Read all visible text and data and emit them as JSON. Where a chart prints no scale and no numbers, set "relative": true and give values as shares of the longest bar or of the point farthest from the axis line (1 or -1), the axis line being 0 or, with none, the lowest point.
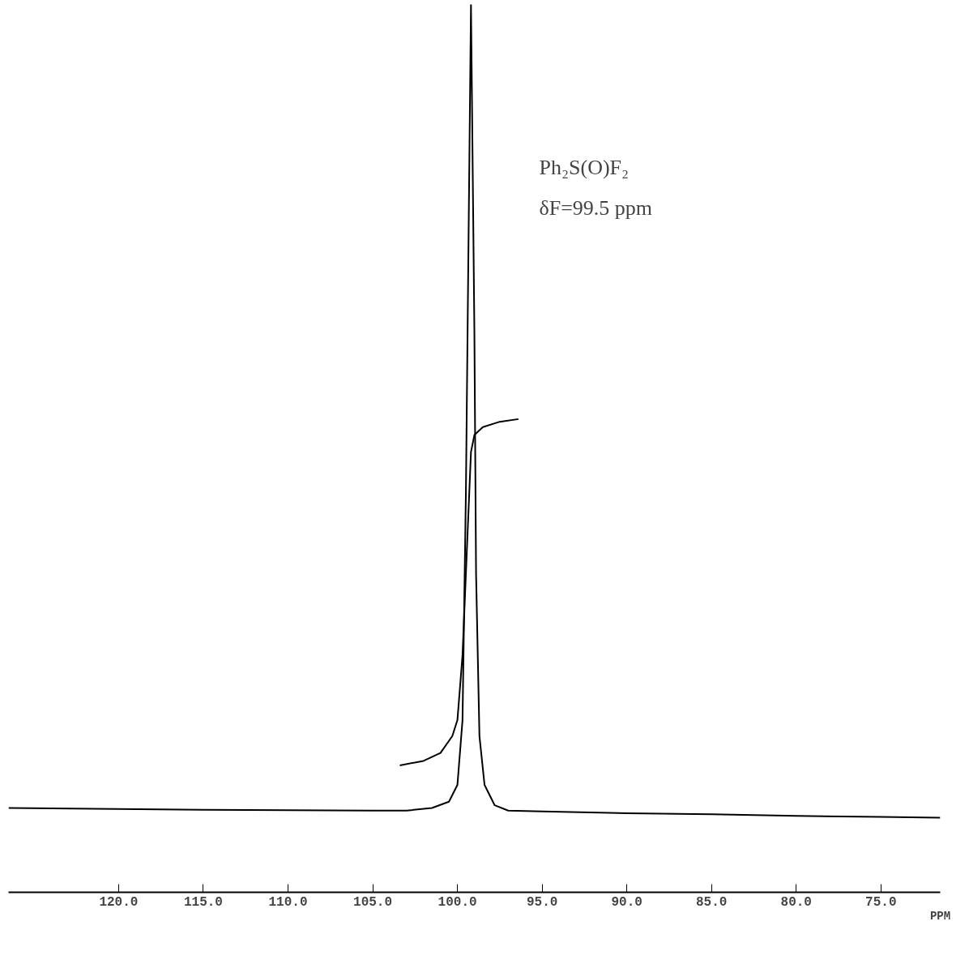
{
  "chart_data": {
    "type": "line",
    "relative": true,
    "xlabel": "PPM",
    "annotations": [
      "Ph₂S(O)F₂",
      "δF=99.5 ppm"
    ],
    "xlim": [
      126.5,
      71.5
    ],
    "xticks": [
      {
        "value": 120,
        "label": "120.0"
      },
      {
        "value": 115,
        "label": "115.0"
      },
      {
        "value": 110,
        "label": "110.0"
      },
      {
        "value": 105,
        "label": "105.0"
      },
      {
        "value": 100,
        "label": "100.0"
      },
      {
        "value": 95,
        "label": "95.0"
      },
      {
        "value": 90,
        "label": "90.0"
      },
      {
        "value": 85,
        "label": "85.0"
      },
      {
        "value": 80,
        "label": "80.0"
      },
      {
        "value": 75,
        "label": "75.0"
      }
    ],
    "grid": false,
    "series": [
      {
        "color": "#000000",
        "x": [
          126.5,
          115,
          105,
          103,
          101.5,
          100.5,
          100,
          99.7,
          99.5,
          99.3,
          99.2,
          99.0,
          98.9,
          98.7,
          98.4,
          97.8,
          97,
          95,
          90,
          85,
          80,
          75,
          71.5
        ],
        "values": [
          0.095,
          0.093,
          0.092,
          0.092,
          0.095,
          0.102,
          0.121,
          0.194,
          0.45,
          0.817,
          1.0,
          0.634,
          0.359,
          0.176,
          0.121,
          0.098,
          0.092,
          0.091,
          0.089,
          0.088,
          0.086,
          0.085,
          0.084
        ]
      },
      {
        "color": "#000000",
        "x": [
          103.4,
          102,
          101,
          100.3,
          100,
          99.7,
          99.4,
          99.2,
          99.0,
          98.5,
          97.5,
          96.4
        ],
        "values": [
          0.143,
          0.148,
          0.157,
          0.176,
          0.194,
          0.267,
          0.405,
          0.496,
          0.515,
          0.524,
          0.53,
          0.533
        ]
      }
    ]
  }
}
